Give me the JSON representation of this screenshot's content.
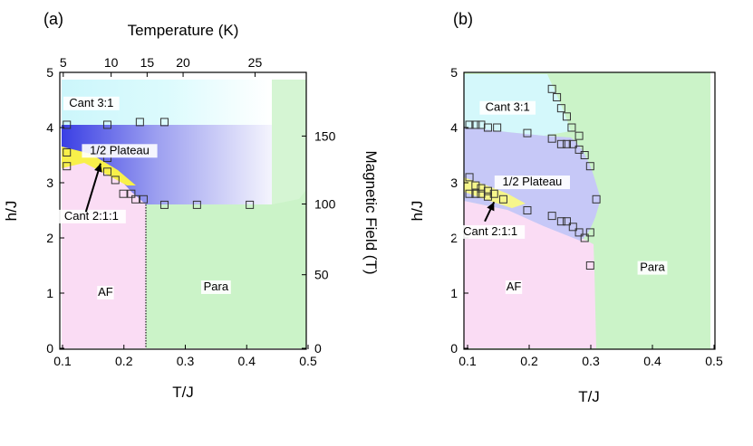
{
  "colors": {
    "af": "#fadcf4",
    "para": "#cbf3c8",
    "cant31": "#d4f8fb",
    "plateau_strong": "#4a4fe6",
    "plateau_light": "#c6c8f7",
    "cant211": "#f8f04a",
    "marker_stroke": "#333333"
  },
  "chart_data": [
    {
      "type": "phase-diagram",
      "panel": "(a)",
      "xlabel": "T/J",
      "ylabel": "h/J",
      "xlim": [
        0.09,
        0.51
      ],
      "ylim": [
        -0.05,
        5.0
      ],
      "xticks": [
        0.1,
        0.2,
        0.3,
        0.4,
        0.5
      ],
      "xtick_labels": [
        "0.1",
        "0.2",
        "0.3",
        "0.4",
        "0.5"
      ],
      "yticks": [
        0,
        1,
        2,
        3,
        4,
        5
      ],
      "ytick_labels": [
        "0",
        "1",
        "2",
        "3",
        "4",
        "5"
      ],
      "top_axis": {
        "label": "Temperature (K)",
        "ticks_T_per_J": [
          0.1012,
          0.1792,
          0.2378,
          0.2964,
          0.4136
        ],
        "tick_labels": [
          "5",
          "10",
          "15",
          "20",
          "25"
        ]
      },
      "right_axis": {
        "label": "Magnetic Field (T)",
        "ticks_h_per_J": [
          0.0,
          1.333,
          2.615,
          3.846
        ],
        "tick_labels": [
          "0",
          "50",
          "100",
          "150"
        ]
      },
      "regions": [
        {
          "name": "AF",
          "label": "AF",
          "label_at": [
            0.17,
            0.95
          ]
        },
        {
          "name": "Para",
          "label": "Para",
          "label_at": [
            0.35,
            1.05
          ]
        },
        {
          "name": "1/2 Plateau",
          "label": "1/2 Plateau",
          "label_at": [
            0.193,
            3.52
          ]
        },
        {
          "name": "Cant 3:1",
          "label": "Cant 3:1",
          "label_at": [
            0.147,
            4.38
          ]
        },
        {
          "name": "Cant 2:1:1",
          "label": "Cant 2:1:1",
          "label_at": [
            0.147,
            2.33
          ]
        }
      ],
      "arrow": {
        "from": [
          0.138,
          2.47
        ],
        "to": [
          0.162,
          3.35
        ]
      },
      "data_points": [
        {
          "x": 0.107,
          "y": 4.05
        },
        {
          "x": 0.173,
          "y": 4.05
        },
        {
          "x": 0.226,
          "y": 4.1
        },
        {
          "x": 0.266,
          "y": 4.1
        },
        {
          "x": 0.107,
          "y": 3.55
        },
        {
          "x": 0.107,
          "y": 3.3
        },
        {
          "x": 0.173,
          "y": 3.45
        },
        {
          "x": 0.173,
          "y": 3.2
        },
        {
          "x": 0.186,
          "y": 3.05
        },
        {
          "x": 0.199,
          "y": 2.8
        },
        {
          "x": 0.212,
          "y": 2.8
        },
        {
          "x": 0.219,
          "y": 2.7
        },
        {
          "x": 0.232,
          "y": 2.7
        },
        {
          "x": 0.266,
          "y": 2.6
        },
        {
          "x": 0.319,
          "y": 2.6
        },
        {
          "x": 0.405,
          "y": 2.6
        }
      ]
    },
    {
      "type": "phase-diagram",
      "panel": "(b)",
      "xlabel": "T/J",
      "ylabel": "h/J",
      "xlim": [
        0.09,
        0.51
      ],
      "ylim": [
        -0.05,
        5.0
      ],
      "xticks": [
        0.1,
        0.2,
        0.3,
        0.4,
        0.5
      ],
      "xtick_labels": [
        "0.1",
        "0.2",
        "0.3",
        "0.4",
        "0.5"
      ],
      "yticks": [
        0,
        1,
        2,
        3,
        4,
        5
      ],
      "ytick_labels": [
        "0",
        "1",
        "2",
        "3",
        "4",
        "5"
      ],
      "regions": [
        {
          "name": "AF",
          "label": "AF",
          "label_at": [
            0.175,
            1.05
          ]
        },
        {
          "name": "Para",
          "label": "Para",
          "label_at": [
            0.4,
            1.4
          ]
        },
        {
          "name": "1/2 Plateau",
          "label": "1/2 Plateau",
          "label_at": [
            0.205,
            2.95
          ]
        },
        {
          "name": "Cant 3:1",
          "label": "Cant 3:1",
          "label_at": [
            0.165,
            4.3
          ]
        },
        {
          "name": "Cant 2:1:1",
          "label": "Cant 2:1:1",
          "label_at": [
            0.137,
            2.05
          ]
        }
      ],
      "arrow": {
        "from": [
          0.128,
          2.3
        ],
        "to": [
          0.143,
          2.65
        ]
      },
      "data_points": [
        {
          "x": 0.103,
          "y": 4.05
        },
        {
          "x": 0.113,
          "y": 4.05
        },
        {
          "x": 0.122,
          "y": 4.05
        },
        {
          "x": 0.133,
          "y": 4.0
        },
        {
          "x": 0.148,
          "y": 4.0
        },
        {
          "x": 0.197,
          "y": 3.9
        },
        {
          "x": 0.237,
          "y": 3.8
        },
        {
          "x": 0.252,
          "y": 3.7
        },
        {
          "x": 0.261,
          "y": 3.7
        },
        {
          "x": 0.271,
          "y": 3.7
        },
        {
          "x": 0.281,
          "y": 3.6
        },
        {
          "x": 0.29,
          "y": 3.5
        },
        {
          "x": 0.299,
          "y": 3.3
        },
        {
          "x": 0.237,
          "y": 4.7
        },
        {
          "x": 0.245,
          "y": 4.55
        },
        {
          "x": 0.252,
          "y": 4.35
        },
        {
          "x": 0.261,
          "y": 4.2
        },
        {
          "x": 0.269,
          "y": 4.0
        },
        {
          "x": 0.281,
          "y": 3.85
        },
        {
          "x": 0.103,
          "y": 3.1
        },
        {
          "x": 0.103,
          "y": 2.8
        },
        {
          "x": 0.113,
          "y": 2.95
        },
        {
          "x": 0.113,
          "y": 2.8
        },
        {
          "x": 0.122,
          "y": 2.9
        },
        {
          "x": 0.122,
          "y": 2.8
        },
        {
          "x": 0.133,
          "y": 2.85
        },
        {
          "x": 0.133,
          "y": 2.75
        },
        {
          "x": 0.143,
          "y": 2.8
        },
        {
          "x": 0.158,
          "y": 2.7
        },
        {
          "x": 0.197,
          "y": 2.5
        },
        {
          "x": 0.237,
          "y": 2.4
        },
        {
          "x": 0.252,
          "y": 2.3
        },
        {
          "x": 0.261,
          "y": 2.3
        },
        {
          "x": 0.271,
          "y": 2.2
        },
        {
          "x": 0.281,
          "y": 2.1
        },
        {
          "x": 0.29,
          "y": 2.0
        },
        {
          "x": 0.299,
          "y": 2.1
        },
        {
          "x": 0.309,
          "y": 2.7
        },
        {
          "x": 0.299,
          "y": 1.5
        }
      ]
    }
  ]
}
